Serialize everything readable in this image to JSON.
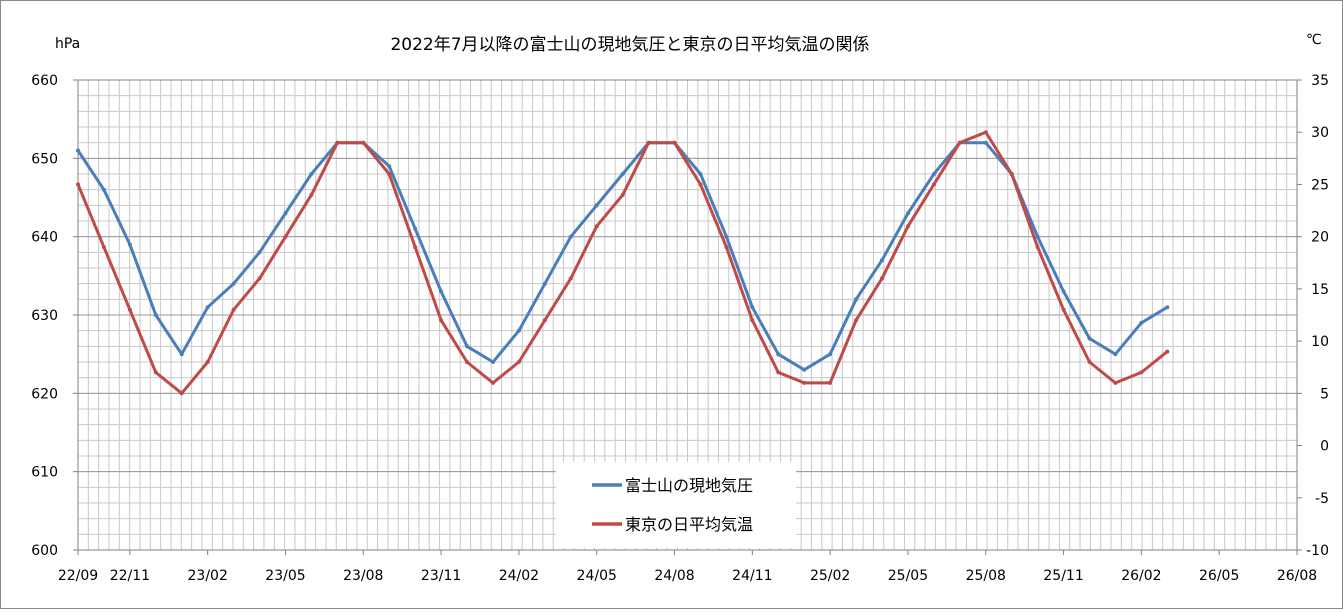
{
  "chart_data": {
    "type": "line",
    "title": "2022年7月以降の富士山の現地気圧と東京の日平均気温の関係",
    "left_axis": {
      "unit": "hPa",
      "ylim": [
        600,
        660
      ],
      "ticks": [
        "600",
        "610",
        "620",
        "630",
        "640",
        "650",
        "660"
      ]
    },
    "right_axis": {
      "unit": "℃",
      "ylim": [
        -10,
        35
      ],
      "ticks": [
        "-10",
        "-5",
        "0",
        "5",
        "10",
        "15",
        "20",
        "25",
        "30",
        "35"
      ]
    },
    "x_ticks": [
      "22/09",
      "22/11",
      "23/02",
      "23/05",
      "23/08",
      "23/11",
      "24/02",
      "24/05",
      "24/08",
      "24/11",
      "25/02",
      "25/05",
      "25/08",
      "25/11",
      "26/02",
      "26/05",
      "26/08"
    ],
    "xlim": [
      "2022-09",
      "2026-08"
    ],
    "grid": true,
    "legend_position": "bottom-center",
    "colors": {
      "pressure": "#4a7ebb",
      "temperature": "#be4b48"
    },
    "series": [
      {
        "name": "富士山の現地気圧",
        "axis": "left",
        "color": "#4a7ebb",
        "x": [
          "22/09",
          "22/10",
          "22/11",
          "22/12",
          "23/01",
          "23/02",
          "23/03",
          "23/04",
          "23/05",
          "23/06",
          "23/07",
          "23/08",
          "23/09",
          "23/10",
          "23/11",
          "23/12",
          "24/01",
          "24/02",
          "24/03",
          "24/04",
          "24/05",
          "24/06",
          "24/07",
          "24/08",
          "24/09",
          "24/10",
          "24/11",
          "24/12",
          "25/01",
          "25/02",
          "25/03",
          "25/04",
          "25/05",
          "25/06",
          "25/07",
          "25/08",
          "25/09",
          "25/10",
          "25/11",
          "25/12",
          "26/01",
          "26/02",
          "26/03"
        ],
        "values": [
          651,
          646,
          639,
          630,
          625,
          631,
          634,
          638,
          643,
          648,
          652,
          652,
          649,
          641,
          633,
          626,
          624,
          628,
          634,
          640,
          644,
          648,
          652,
          652,
          648,
          640,
          631,
          625,
          623,
          625,
          632,
          637,
          643,
          648,
          652,
          652,
          648,
          640,
          633,
          627,
          625,
          629,
          631
        ]
      },
      {
        "name": "東京の日平均気温",
        "axis": "right",
        "color": "#be4b48",
        "x": [
          "22/09",
          "22/10",
          "22/11",
          "22/12",
          "23/01",
          "23/02",
          "23/03",
          "23/04",
          "23/05",
          "23/06",
          "23/07",
          "23/08",
          "23/09",
          "23/10",
          "23/11",
          "23/12",
          "24/01",
          "24/02",
          "24/03",
          "24/04",
          "24/05",
          "24/06",
          "24/07",
          "24/08",
          "24/09",
          "24/10",
          "24/11",
          "24/12",
          "25/01",
          "25/02",
          "25/03",
          "25/04",
          "25/05",
          "25/06",
          "25/07",
          "25/08",
          "25/09",
          "25/10",
          "25/11",
          "25/12",
          "26/01",
          "26/02",
          "26/03"
        ],
        "values": [
          25,
          19,
          13,
          7,
          5,
          8,
          13,
          16,
          20,
          24,
          29,
          29,
          26,
          19,
          12,
          8,
          6,
          8,
          12,
          16,
          21,
          24,
          29,
          29,
          25,
          19,
          12,
          7,
          6,
          6,
          12,
          16,
          21,
          25,
          29,
          30,
          26,
          19,
          13,
          8,
          6,
          7,
          9
        ]
      }
    ]
  }
}
